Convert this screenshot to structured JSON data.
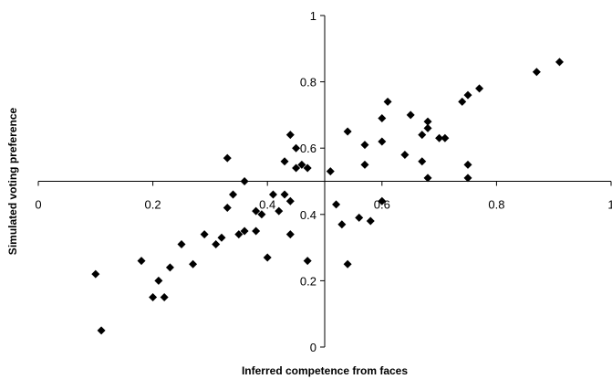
{
  "chart_data": {
    "type": "scatter",
    "xlabel": "Inferred competence from faces",
    "ylabel": "Simulated voting preference",
    "xlim": [
      0,
      1
    ],
    "ylim": [
      0,
      1
    ],
    "x_ticks": [
      "0",
      "0.2",
      "0.4",
      "0.6",
      "0.8",
      "1"
    ],
    "y_ticks": [
      "0",
      "0.2",
      "0.4",
      "0.6",
      "0.8",
      "1"
    ],
    "axes_cross_at": {
      "x": 0.5,
      "y": 0.5
    },
    "grid": false,
    "marker": "diamond",
    "marker_color": "#000000",
    "points": [
      [
        0.1,
        0.22
      ],
      [
        0.11,
        0.05
      ],
      [
        0.18,
        0.26
      ],
      [
        0.2,
        0.15
      ],
      [
        0.21,
        0.2
      ],
      [
        0.22,
        0.15
      ],
      [
        0.23,
        0.24
      ],
      [
        0.25,
        0.31
      ],
      [
        0.27,
        0.25
      ],
      [
        0.29,
        0.34
      ],
      [
        0.31,
        0.31
      ],
      [
        0.32,
        0.33
      ],
      [
        0.33,
        0.42
      ],
      [
        0.33,
        0.57
      ],
      [
        0.34,
        0.46
      ],
      [
        0.35,
        0.34
      ],
      [
        0.36,
        0.35
      ],
      [
        0.36,
        0.5
      ],
      [
        0.38,
        0.41
      ],
      [
        0.38,
        0.35
      ],
      [
        0.39,
        0.4
      ],
      [
        0.4,
        0.27
      ],
      [
        0.41,
        0.46
      ],
      [
        0.42,
        0.41
      ],
      [
        0.43,
        0.56
      ],
      [
        0.43,
        0.46
      ],
      [
        0.44,
        0.44
      ],
      [
        0.44,
        0.34
      ],
      [
        0.44,
        0.64
      ],
      [
        0.45,
        0.6
      ],
      [
        0.45,
        0.54
      ],
      [
        0.46,
        0.55
      ],
      [
        0.47,
        0.26
      ],
      [
        0.47,
        0.54
      ],
      [
        0.51,
        0.53
      ],
      [
        0.52,
        0.43
      ],
      [
        0.53,
        0.37
      ],
      [
        0.54,
        0.65
      ],
      [
        0.54,
        0.25
      ],
      [
        0.56,
        0.39
      ],
      [
        0.57,
        0.55
      ],
      [
        0.57,
        0.61
      ],
      [
        0.58,
        0.38
      ],
      [
        0.6,
        0.62
      ],
      [
        0.6,
        0.69
      ],
      [
        0.6,
        0.44
      ],
      [
        0.61,
        0.74
      ],
      [
        0.64,
        0.58
      ],
      [
        0.65,
        0.7
      ],
      [
        0.67,
        0.64
      ],
      [
        0.67,
        0.56
      ],
      [
        0.68,
        0.68
      ],
      [
        0.68,
        0.66
      ],
      [
        0.68,
        0.51
      ],
      [
        0.7,
        0.63
      ],
      [
        0.71,
        0.63
      ],
      [
        0.74,
        0.74
      ],
      [
        0.75,
        0.76
      ],
      [
        0.75,
        0.55
      ],
      [
        0.75,
        0.51
      ],
      [
        0.77,
        0.78
      ],
      [
        0.87,
        0.83
      ],
      [
        0.91,
        0.86
      ]
    ]
  }
}
